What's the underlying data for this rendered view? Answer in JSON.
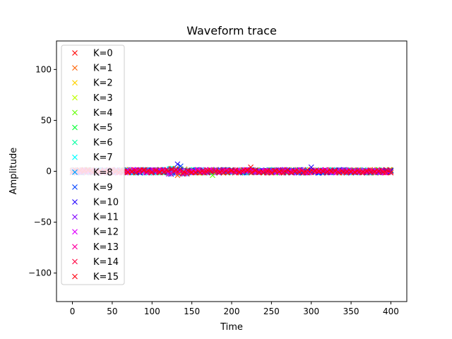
{
  "chart_data": {
    "type": "scatter",
    "title": "Waveform trace",
    "xlabel": "Time",
    "ylabel": "Amplitude",
    "xlim": [
      -20,
      420
    ],
    "ylim": [
      -128,
      128
    ],
    "xticks": [
      0,
      50,
      100,
      150,
      200,
      250,
      300,
      350,
      400
    ],
    "yticks": [
      -100,
      -50,
      0,
      50,
      100
    ],
    "xtick_labels": [
      "0",
      "50",
      "100",
      "150",
      "200",
      "250",
      "300",
      "350",
      "400"
    ],
    "ytick_labels": [
      "−100",
      "−50",
      "0",
      "50",
      "100"
    ],
    "marker": "x",
    "grid": false,
    "legend_position": "upper-left",
    "x_sample_step": 5,
    "x_range": [
      0,
      400
    ],
    "series": [
      {
        "name": "K=0",
        "color": "#ff0000"
      },
      {
        "name": "K=1",
        "color": "#ff6000"
      },
      {
        "name": "K=2",
        "color": "#ffd200"
      },
      {
        "name": "K=3",
        "color": "#bfff00"
      },
      {
        "name": "K=4",
        "color": "#60ff00"
      },
      {
        "name": "K=5",
        "color": "#00ff30"
      },
      {
        "name": "K=6",
        "color": "#00ffa0"
      },
      {
        "name": "K=7",
        "color": "#00ffff"
      },
      {
        "name": "K=8",
        "color": "#00a0ff"
      },
      {
        "name": "K=9",
        "color": "#0040ff"
      },
      {
        "name": "K=10",
        "color": "#2000ff"
      },
      {
        "name": "K=11",
        "color": "#8000ff"
      },
      {
        "name": "K=12",
        "color": "#e000ff"
      },
      {
        "name": "K=13",
        "color": "#ff00a0"
      },
      {
        "name": "K=14",
        "color": "#ff0040"
      },
      {
        "name": "K=15",
        "color": "#ff0010"
      }
    ],
    "notable_points": [
      {
        "series": "K=10",
        "x": 132,
        "y": 7
      },
      {
        "series": "K=9",
        "x": 136,
        "y": 5
      },
      {
        "series": "K=0",
        "x": 224,
        "y": 4
      },
      {
        "series": "K=10",
        "x": 300,
        "y": 4
      },
      {
        "series": "K=1",
        "x": 132,
        "y": -4
      },
      {
        "series": "K=4",
        "x": 176,
        "y": -4
      }
    ]
  }
}
